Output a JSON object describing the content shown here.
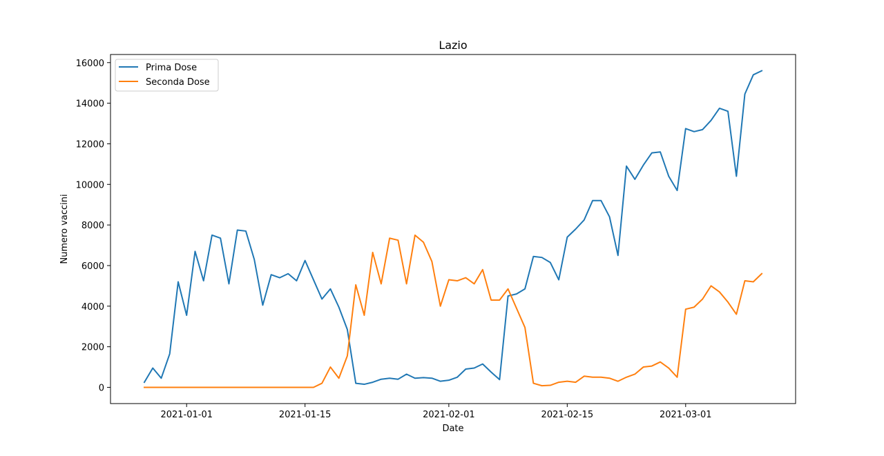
{
  "chart_data": {
    "type": "line",
    "title": "Lazio",
    "xlabel": "Date",
    "ylabel": "Numero vaccini",
    "x_start": "2020-12-27",
    "x_end": "2021-03-10",
    "xlim": [
      "2020-12-23",
      "2021-03-14"
    ],
    "ylim": [
      -800,
      16400
    ],
    "x_ticks": [
      "2021-01-01",
      "2021-01-15",
      "2021-02-01",
      "2021-02-15",
      "2021-03-01"
    ],
    "y_ticks": [
      0,
      2000,
      4000,
      6000,
      8000,
      10000,
      12000,
      14000,
      16000
    ],
    "grid": false,
    "legend_position": "top-left",
    "series": [
      {
        "name": "Prima Dose",
        "color": "#1f77b4",
        "values": [
          250,
          950,
          450,
          1650,
          5200,
          3550,
          6700,
          5250,
          7500,
          7350,
          5100,
          7750,
          7700,
          6300,
          4050,
          5550,
          5400,
          5600,
          5250,
          6250,
          5300,
          4350,
          4850,
          3950,
          2850,
          200,
          150,
          250,
          400,
          450,
          400,
          650,
          450,
          480,
          450,
          300,
          350,
          500,
          900,
          950,
          1150,
          750,
          380,
          4500,
          4600,
          4850,
          6450,
          6400,
          6150,
          5300,
          7400,
          7800,
          8250,
          9200,
          9200,
          8400,
          6500,
          10900,
          10250,
          10950,
          11550,
          11600,
          10400,
          9700,
          12750,
          12600,
          12700,
          13150,
          13750,
          13600,
          10400,
          14450,
          15400,
          15600
        ]
      },
      {
        "name": "Seconda Dose",
        "color": "#ff7f0e",
        "values": [
          0,
          0,
          0,
          0,
          0,
          0,
          0,
          0,
          0,
          0,
          0,
          0,
          0,
          0,
          0,
          0,
          0,
          0,
          0,
          0,
          0,
          200,
          1000,
          450,
          1550,
          5050,
          3550,
          6650,
          5100,
          7350,
          7250,
          5100,
          7500,
          7150,
          6200,
          4000,
          5300,
          5250,
          5400,
          5100,
          5800,
          4300,
          4300,
          4850,
          3900,
          2950,
          200,
          80,
          100,
          250,
          300,
          250,
          550,
          500,
          500,
          450,
          300,
          500,
          650,
          1000,
          1050,
          1250,
          950,
          500,
          3850,
          3950,
          4350,
          5000,
          4700,
          4200,
          3600,
          5250,
          5200,
          5600
        ]
      }
    ]
  }
}
